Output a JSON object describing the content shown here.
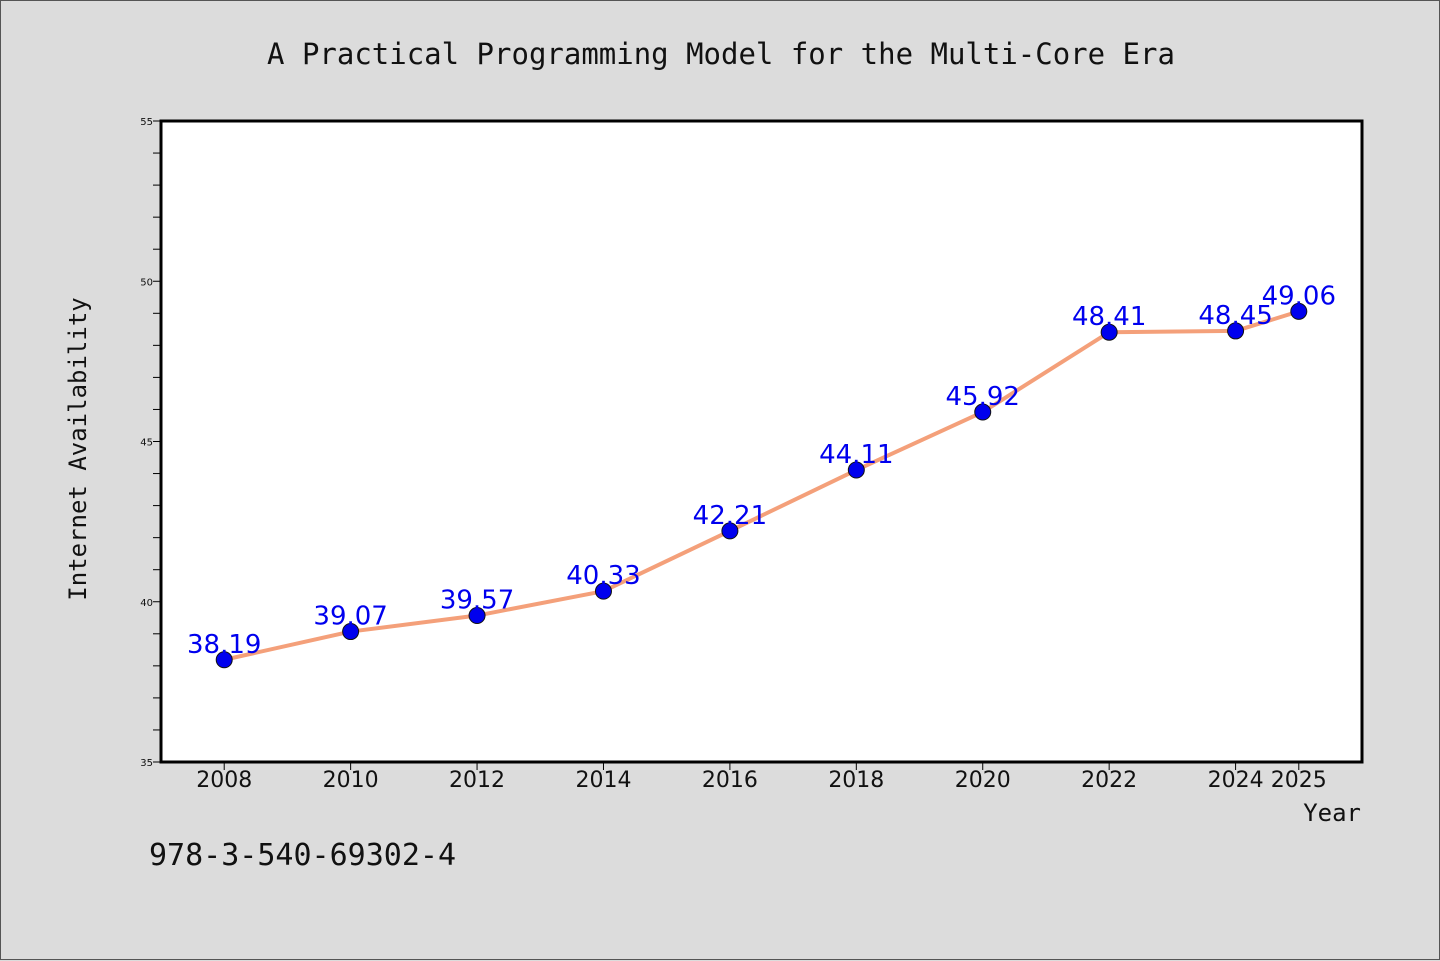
{
  "chart_data": {
    "type": "line",
    "title": "A Practical Programming Model for the Multi-Core Era",
    "xlabel": "Year",
    "ylabel": "Internet Availability",
    "x": [
      2008,
      2010,
      2012,
      2014,
      2016,
      2018,
      2020,
      2022,
      2024,
      2025
    ],
    "series": [
      {
        "values": [
          38.19,
          39.07,
          39.57,
          40.33,
          42.21,
          44.11,
          45.92,
          48.41,
          48.45,
          49.06
        ],
        "labels": [
          "38.19",
          "39.07",
          "39.57",
          "40.33",
          "42.21",
          "44.11",
          "45.92",
          "48.41",
          "48.45",
          "49.06"
        ],
        "line_color": "#f4a07a",
        "marker_color": "#0000ee"
      }
    ],
    "ylim": [
      35,
      55
    ],
    "yticks": [
      35,
      40,
      45,
      50,
      55
    ],
    "xtick_labels": [
      "2008",
      "2010",
      "2012",
      "2014",
      "2016",
      "2018",
      "2020",
      "2022",
      "2024",
      "2025"
    ],
    "grid": false,
    "legend": "none"
  },
  "footnote": "978-3-540-69302-4"
}
